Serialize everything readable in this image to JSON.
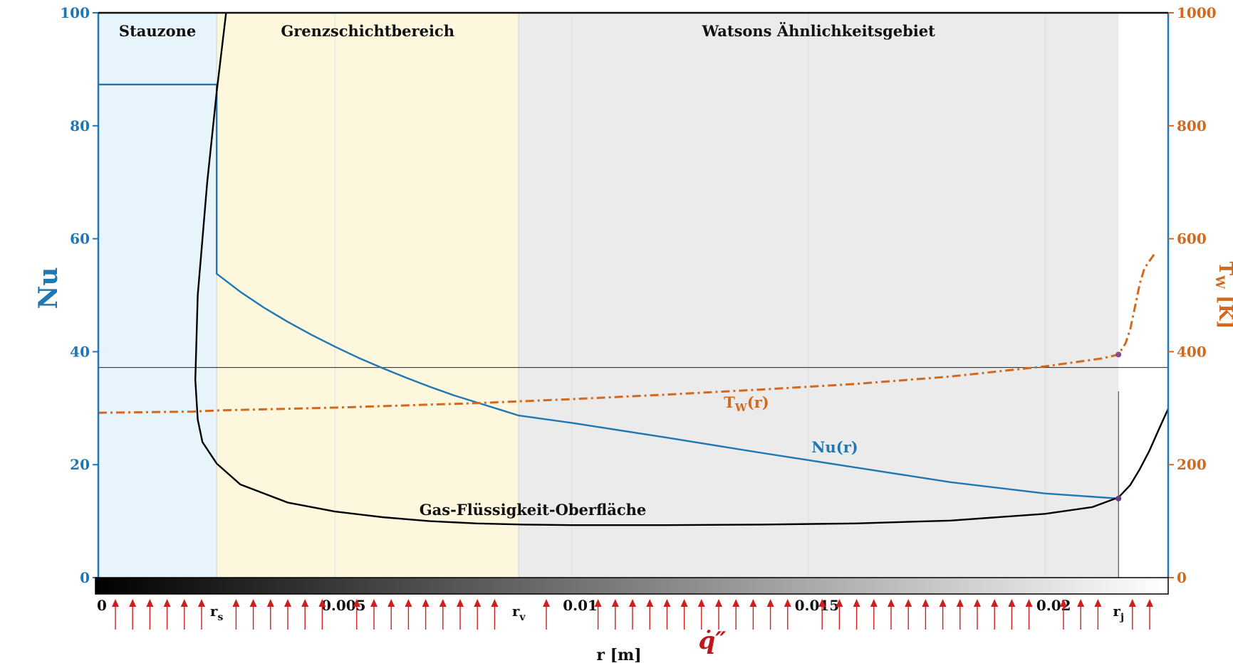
{
  "chart_data": {
    "type": "line",
    "xlabel": "r [m]",
    "ylabel_left": "Nu",
    "ylabel_right": "T_W [K]",
    "xlim": [
      0,
      0.0226
    ],
    "ylim_left": [
      0,
      100
    ],
    "ylim_right": [
      0,
      1000
    ],
    "x_ticks": [
      {
        "value": 0,
        "label": "0"
      },
      {
        "value": 0.005,
        "label": "0.005"
      },
      {
        "value": 0.01,
        "label": "0.01"
      },
      {
        "value": 0.015,
        "label": "0.015"
      },
      {
        "value": 0.02,
        "label": "0.02"
      }
    ],
    "y_ticks_left": [
      0,
      20,
      40,
      60,
      80,
      100
    ],
    "y_ticks_right": [
      0,
      200,
      400,
      600,
      800,
      1000
    ],
    "markers": [
      {
        "value": 0.0025,
        "label": "r",
        "sub": "s"
      },
      {
        "value": 0.00888,
        "label": "r",
        "sub": "v"
      },
      {
        "value": 0.02155,
        "label": "r",
        "sub": "j"
      }
    ],
    "regions": [
      {
        "from": 0,
        "to": 0.0025,
        "label": "Stauzone",
        "color": "#e8f4fb"
      },
      {
        "from": 0.0025,
        "to": 0.00888,
        "label": "Grenzschichtbereich",
        "color": "#fdf8dd"
      },
      {
        "from": 0.00888,
        "to": 0.02155,
        "label": "Watsons Ähnlichkeitsgebiet",
        "color": "#ebebeb"
      }
    ],
    "reference_line_y": 37.2,
    "annotations": {
      "heat_flux": "q̇″",
      "surface": "Gas-Flüssigkeit-Oberfläche"
    },
    "series": [
      {
        "name": "Nu(r)",
        "label_main": "Nu(r)",
        "label_sub": "",
        "axis": "left",
        "color": "#1f77b4",
        "style": "solid",
        "x": [
          0,
          0.0025,
          0.0025,
          0.0025,
          0.003,
          0.0035,
          0.004,
          0.0045,
          0.005,
          0.0055,
          0.006,
          0.0065,
          0.007,
          0.0075,
          0.008,
          0.0085,
          0.00888,
          0.01,
          0.012,
          0.014,
          0.016,
          0.018,
          0.02,
          0.02155
        ],
        "y": [
          87.3,
          87.3,
          65,
          53.8,
          50.6,
          47.8,
          45.3,
          43.0,
          40.9,
          38.9,
          37.1,
          35.4,
          33.8,
          32.3,
          31.0,
          29.7,
          28.7,
          27.4,
          24.8,
          22.1,
          19.5,
          16.9,
          14.9,
          14.0
        ]
      },
      {
        "name": "T_W(r)",
        "label_main": "T",
        "label_sub": "W",
        "label_tail": "(r)",
        "axis": "right",
        "color": "#d2691e",
        "style": "dashdot",
        "x": [
          0,
          0.002,
          0.0025,
          0.005,
          0.008,
          0.01,
          0.012,
          0.014,
          0.016,
          0.018,
          0.02,
          0.0212,
          0.02155,
          0.0217,
          0.0218,
          0.0219,
          0.022,
          0.0221,
          0.0222,
          0.0223
        ],
        "y": [
          292,
          294,
          296,
          301,
          309,
          316,
          324,
          333,
          343,
          356,
          374,
          388,
          395,
          415,
          440,
          480,
          520,
          548,
          560,
          572
        ]
      },
      {
        "name": "Gas-Flüssigkeit-Oberfläche",
        "axis": "left",
        "color": "#000000",
        "style": "solid",
        "x": [
          0.0027,
          0.0025,
          0.0023,
          0.0021,
          0.00205,
          0.0021,
          0.0022,
          0.0025,
          0.003,
          0.004,
          0.005,
          0.006,
          0.007,
          0.008,
          0.009,
          0.01,
          0.012,
          0.014,
          0.016,
          0.018,
          0.02,
          0.021,
          0.02155,
          0.0218,
          0.022,
          0.0222,
          0.0224,
          0.0226
        ],
        "y": [
          100,
          86,
          70,
          50,
          35,
          28,
          24,
          20.2,
          16.5,
          13.3,
          11.7,
          10.7,
          10.0,
          9.6,
          9.4,
          9.3,
          9.3,
          9.4,
          9.6,
          10.1,
          11.3,
          12.5,
          14.2,
          16.4,
          19.2,
          22.4,
          26.2,
          29.9
        ]
      }
    ]
  }
}
